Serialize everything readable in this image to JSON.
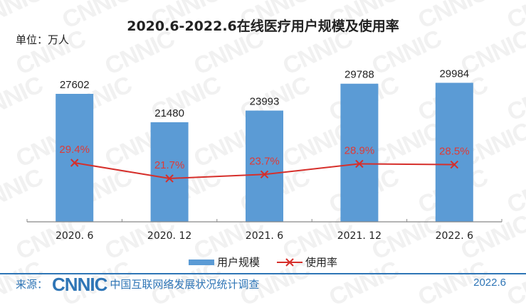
{
  "header": {
    "title": "2020.6-2022.6在线医疗用户规模及使用率",
    "unit": "单位：万人"
  },
  "legend": {
    "bar_label": "用户规模",
    "line_label": "使用率"
  },
  "footer": {
    "source_label": "来源：",
    "logo_text": "CNNIC",
    "survey_name": "中国互联网络发展状况统计调查",
    "date": "2022.6"
  },
  "watermark": "CNNIC",
  "colors": {
    "bar": "#5b9bd5",
    "line": "#d62f2b",
    "rate_label": "#e03a36",
    "footer_accent": "#2e75b6"
  },
  "chart_data": {
    "type": "bar",
    "title": "2020.6-2022.6在线医疗用户规模及使用率",
    "xlabel": "",
    "ylabel": "单位：万人",
    "categories": [
      "2020. 6",
      "2020. 12",
      "2021. 6",
      "2021. 12",
      "2022. 6"
    ],
    "series": [
      {
        "name": "用户规模",
        "type": "bar",
        "unit": "万人",
        "values": [
          27602,
          21480,
          23993,
          29788,
          29984
        ],
        "labels": [
          "27602",
          "21480",
          "23993",
          "29788",
          "29984"
        ]
      },
      {
        "name": "使用率",
        "type": "line",
        "unit": "%",
        "values": [
          29.4,
          21.7,
          23.7,
          28.9,
          28.5
        ],
        "labels": [
          "29.4%",
          "21.7%",
          "23.7%",
          "28.9%",
          "28.5%"
        ],
        "marker": "x"
      }
    ],
    "grid": false,
    "legend_position": "bottom"
  }
}
